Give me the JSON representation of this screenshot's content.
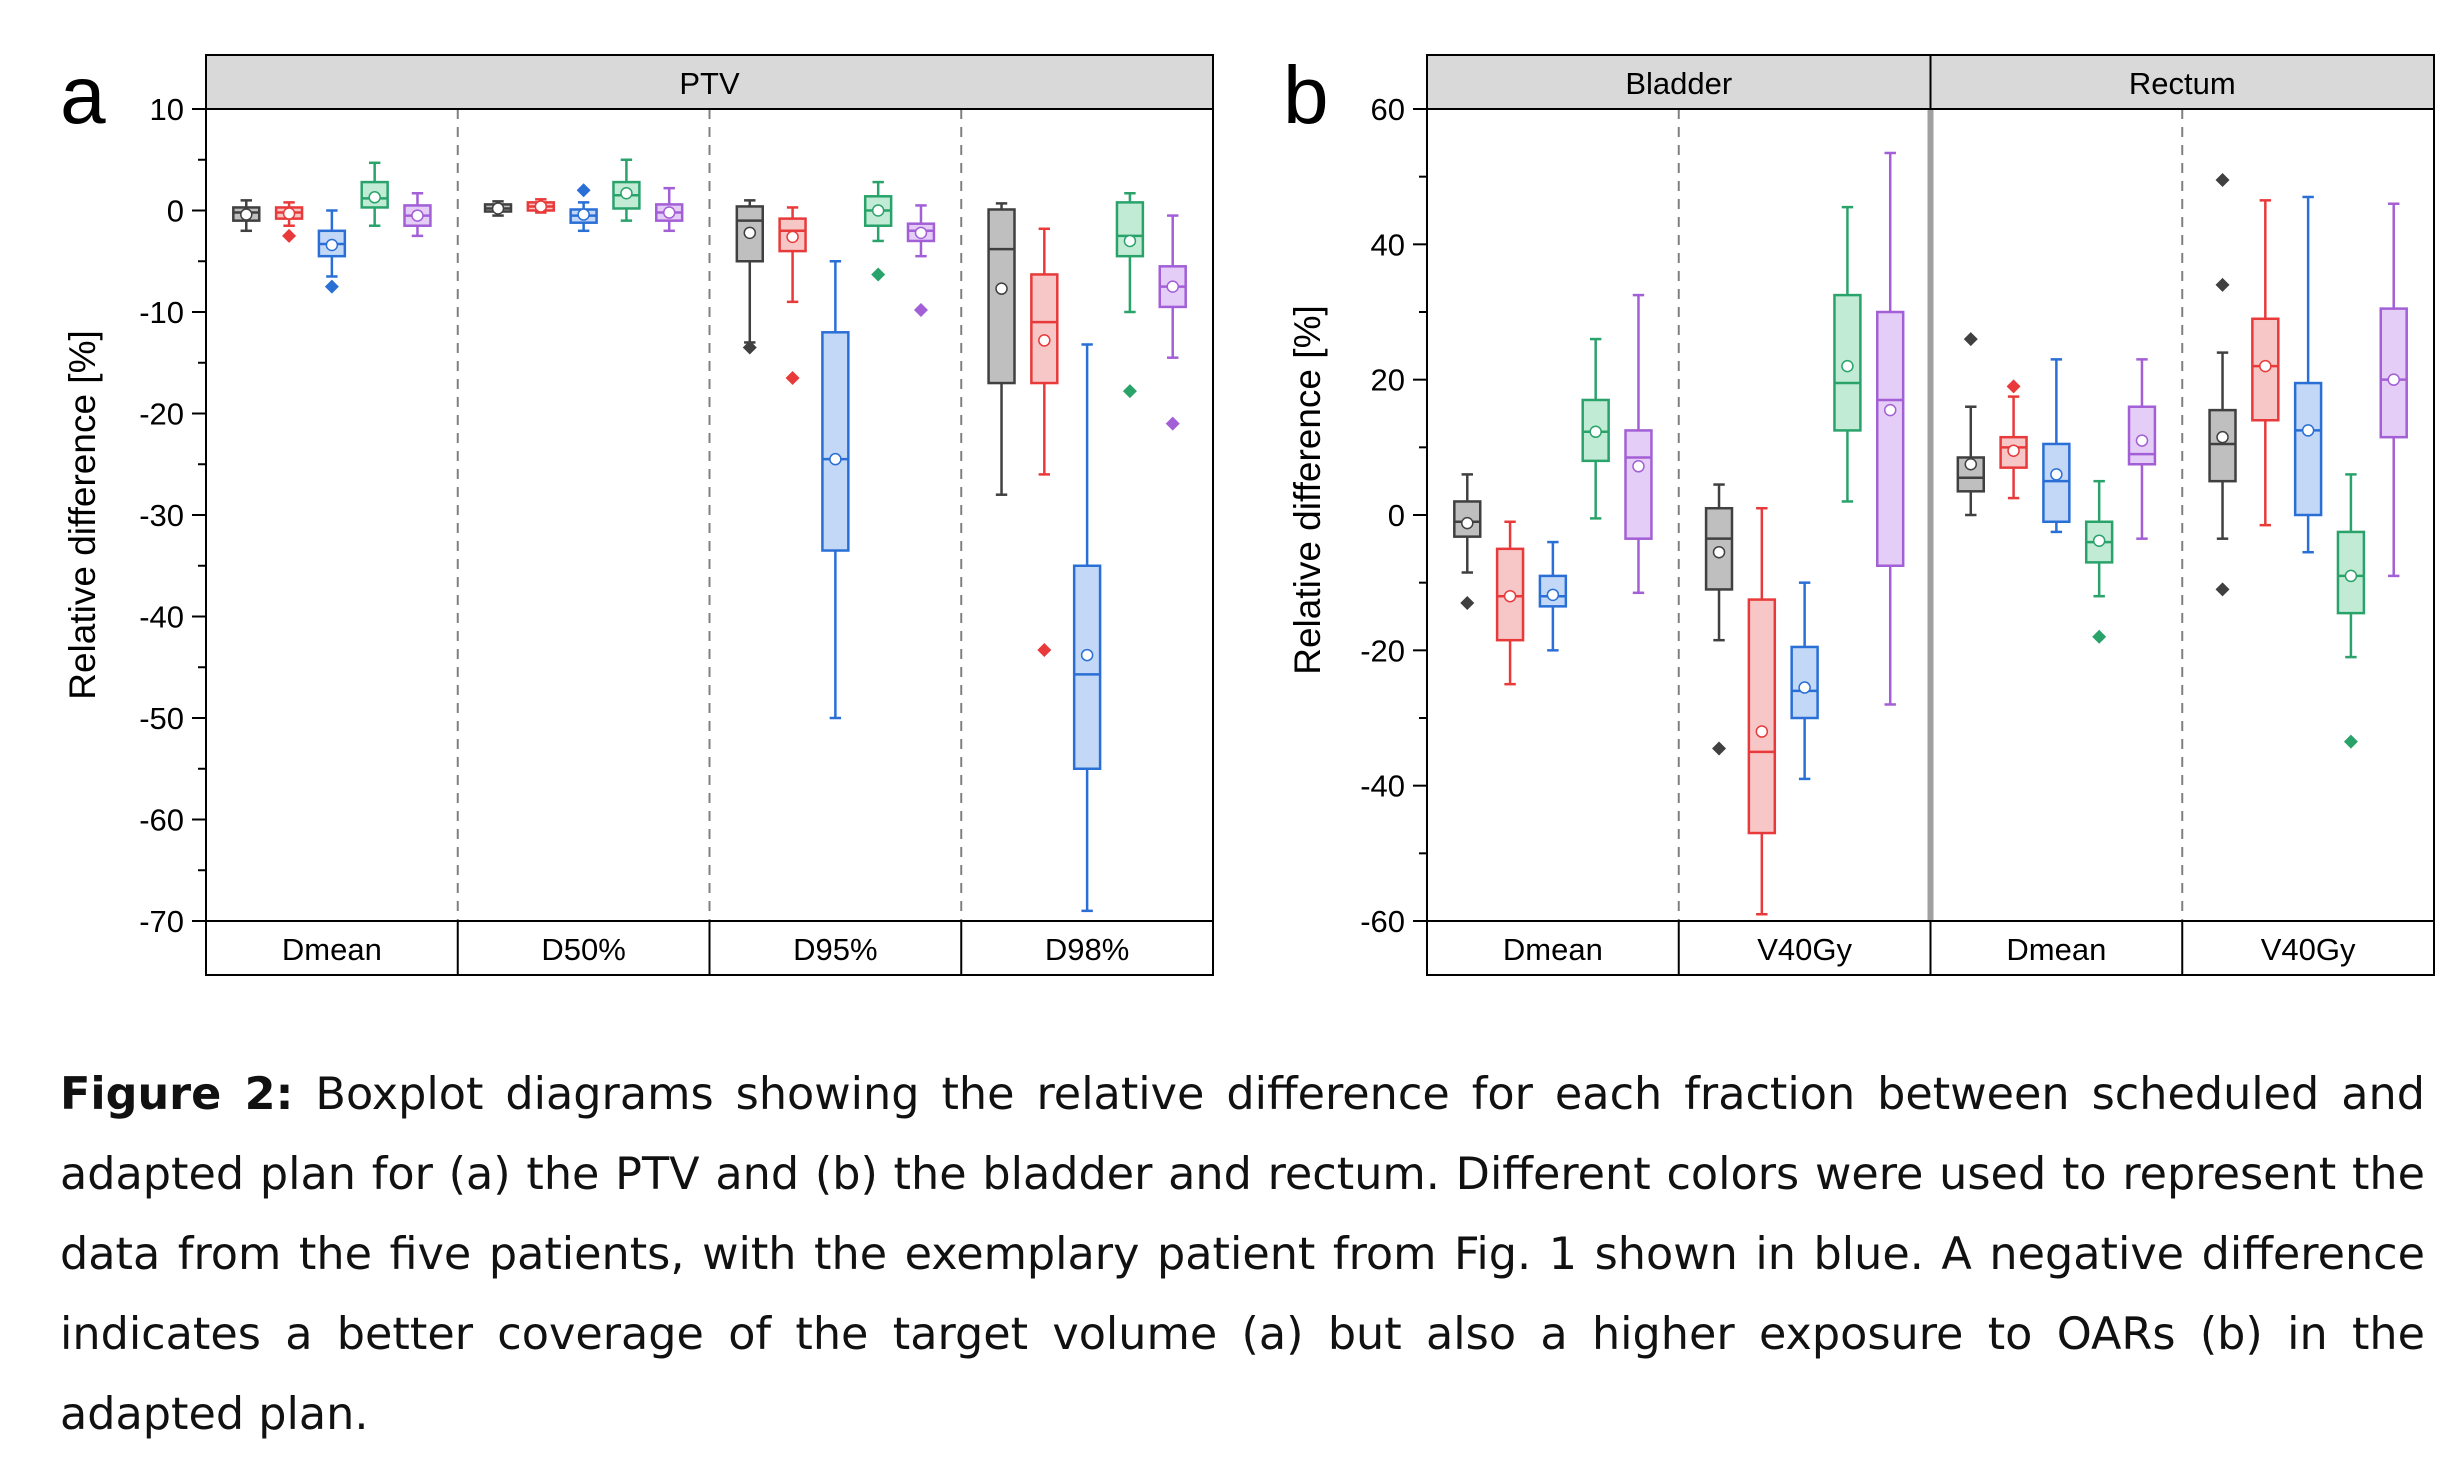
{
  "panel_a_letter": "a",
  "panel_b_letter": "b",
  "caption": {
    "label": "Figure 2:",
    "text": "Boxplot diagrams showing the relative difference for each fraction between scheduled and adapted plan for (a) the PTV and (b) the bladder and rectum. Different colors were used to represent the data from the five patients, with the exemplary patient from Fig. 1 shown in blue. A negative difference indicates a better coverage of the target volume (a) but also a higher exposure to OARs (b) in the adapted plan."
  },
  "colors": {
    "patients": [
      "#404040",
      "#e83a3a",
      "#2a6fd6",
      "#2aa36b",
      "#a35fd6"
    ],
    "fills": [
      "#bfbfbf",
      "#f7c6c6",
      "#c3d8f6",
      "#c2ebd6",
      "#e4cdf6"
    ],
    "header_bg": "#d9d9d9",
    "divider": "#808080"
  },
  "chart_data": [
    {
      "type": "boxplot",
      "panel": "a",
      "ylabel": "Relative difference [%]",
      "ylim": [
        -70,
        10
      ],
      "yticks": [
        10,
        0,
        -10,
        -20,
        -30,
        -40,
        -50,
        -60,
        -70
      ],
      "groups": [
        {
          "header": "PTV",
          "categories": [
            {
              "label": "Dmean",
              "boxes": [
                {
                  "whislo": -2,
                  "q1": -1,
                  "med": -0.2,
                  "q3": 0.3,
                  "whishi": 1,
                  "mean": -0.4,
                  "outliers": []
                },
                {
                  "whislo": -1.5,
                  "q1": -0.8,
                  "med": -0.2,
                  "q3": 0.3,
                  "whishi": 0.8,
                  "mean": -0.3,
                  "outliers": [
                    -2.5
                  ]
                },
                {
                  "whislo": -6.5,
                  "q1": -4.5,
                  "med": -3.3,
                  "q3": -2,
                  "whishi": 0,
                  "mean": -3.4,
                  "outliers": [
                    -7.5
                  ]
                },
                {
                  "whislo": -1.5,
                  "q1": 0.3,
                  "med": 1.2,
                  "q3": 2.8,
                  "whishi": 4.7,
                  "mean": 1.3,
                  "outliers": []
                },
                {
                  "whislo": -2.5,
                  "q1": -1.5,
                  "med": -0.5,
                  "q3": 0.5,
                  "whishi": 1.7,
                  "mean": -0.5,
                  "outliers": []
                }
              ]
            },
            {
              "label": "D50%",
              "boxes": [
                {
                  "whislo": -0.5,
                  "q1": -0.1,
                  "med": 0.2,
                  "q3": 0.6,
                  "whishi": 0.9,
                  "mean": 0.2,
                  "outliers": []
                },
                {
                  "whislo": -0.2,
                  "q1": 0,
                  "med": 0.4,
                  "q3": 0.8,
                  "whishi": 1.1,
                  "mean": 0.4,
                  "outliers": []
                },
                {
                  "whislo": -2,
                  "q1": -1.2,
                  "med": -0.5,
                  "q3": 0.1,
                  "whishi": 0.8,
                  "mean": -0.4,
                  "outliers": [
                    2
                  ]
                },
                {
                  "whislo": -1,
                  "q1": 0.2,
                  "med": 1.5,
                  "q3": 2.8,
                  "whishi": 5,
                  "mean": 1.7,
                  "outliers": []
                },
                {
                  "whislo": -2,
                  "q1": -1,
                  "med": -0.2,
                  "q3": 0.6,
                  "whishi": 2.2,
                  "mean": -0.2,
                  "outliers": []
                }
              ]
            },
            {
              "label": "D95%",
              "boxes": [
                {
                  "whislo": -13,
                  "q1": -5,
                  "med": -1,
                  "q3": 0.4,
                  "whishi": 1,
                  "mean": -2.2,
                  "outliers": [
                    -13.5
                  ]
                },
                {
                  "whislo": -9,
                  "q1": -4,
                  "med": -2,
                  "q3": -0.8,
                  "whishi": 0.3,
                  "mean": -2.6,
                  "outliers": [
                    -16.5
                  ]
                },
                {
                  "whislo": -50,
                  "q1": -33.5,
                  "med": -24.5,
                  "q3": -12,
                  "whishi": -5,
                  "mean": -24.5,
                  "outliers": []
                },
                {
                  "whislo": -3,
                  "q1": -1.5,
                  "med": 0,
                  "q3": 1.4,
                  "whishi": 2.8,
                  "mean": 0,
                  "outliers": [
                    -6.3
                  ]
                },
                {
                  "whislo": -4.5,
                  "q1": -3,
                  "med": -2,
                  "q3": -1.3,
                  "whishi": 0.5,
                  "mean": -2.2,
                  "outliers": [
                    -9.8
                  ]
                }
              ]
            },
            {
              "label": "D98%",
              "boxes": [
                {
                  "whislo": -28,
                  "q1": -17,
                  "med": -3.8,
                  "q3": 0.1,
                  "whishi": 0.7,
                  "mean": -7.7,
                  "outliers": []
                },
                {
                  "whislo": -26,
                  "q1": -17,
                  "med": -11,
                  "q3": -6.3,
                  "whishi": -1.8,
                  "mean": -12.8,
                  "outliers": [
                    -43.3
                  ]
                },
                {
                  "whislo": -69,
                  "q1": -55,
                  "med": -45.7,
                  "q3": -35,
                  "whishi": -13.2,
                  "mean": -43.8,
                  "outliers": []
                },
                {
                  "whislo": -10,
                  "q1": -4.5,
                  "med": -2.5,
                  "q3": 0.8,
                  "whishi": 1.7,
                  "mean": -3,
                  "outliers": [
                    -17.8
                  ]
                },
                {
                  "whislo": -14.5,
                  "q1": -9.5,
                  "med": -7.5,
                  "q3": -5.5,
                  "whishi": -0.5,
                  "mean": -7.5,
                  "outliers": [
                    -21
                  ]
                }
              ]
            }
          ]
        }
      ]
    },
    {
      "type": "boxplot",
      "panel": "b",
      "ylabel": "Relative difference [%]",
      "ylim": [
        -60,
        60
      ],
      "yticks": [
        60,
        40,
        20,
        0,
        -20,
        -40,
        -60
      ],
      "groups": [
        {
          "header": "Bladder",
          "categories": [
            {
              "label": "Dmean",
              "boxes": [
                {
                  "whislo": -8.5,
                  "q1": -3.2,
                  "med": -1,
                  "q3": 2,
                  "whishi": 6,
                  "mean": -1.2,
                  "outliers": [
                    -13
                  ]
                },
                {
                  "whislo": -25,
                  "q1": -18.5,
                  "med": -12,
                  "q3": -5,
                  "whishi": -1,
                  "mean": -12,
                  "outliers": []
                },
                {
                  "whislo": -20,
                  "q1": -13.5,
                  "med": -12,
                  "q3": -9,
                  "whishi": -4,
                  "mean": -11.8,
                  "outliers": []
                },
                {
                  "whislo": -0.5,
                  "q1": 8,
                  "med": 12.3,
                  "q3": 17,
                  "whishi": 26,
                  "mean": 12.3,
                  "outliers": []
                },
                {
                  "whislo": -11.5,
                  "q1": -3.5,
                  "med": 8.5,
                  "q3": 12.5,
                  "whishi": 32.5,
                  "mean": 7.2,
                  "outliers": []
                }
              ]
            },
            {
              "label": "V40Gy",
              "boxes": [
                {
                  "whislo": -18.5,
                  "q1": -11,
                  "med": -3.5,
                  "q3": 1,
                  "whishi": 4.5,
                  "mean": -5.5,
                  "outliers": [
                    -34.5
                  ]
                },
                {
                  "whislo": -59,
                  "q1": -47,
                  "med": -35,
                  "q3": -12.5,
                  "whishi": 1,
                  "mean": -32,
                  "outliers": []
                },
                {
                  "whislo": -39,
                  "q1": -30,
                  "med": -26,
                  "q3": -19.5,
                  "whishi": -10,
                  "mean": -25.5,
                  "outliers": []
                },
                {
                  "whislo": 2,
                  "q1": 12.5,
                  "med": 19.5,
                  "q3": 32.5,
                  "whishi": 45.5,
                  "mean": 22,
                  "outliers": []
                },
                {
                  "whislo": -28,
                  "q1": -7.5,
                  "med": 17,
                  "q3": 30,
                  "whishi": 53.5,
                  "mean": 15.5,
                  "outliers": []
                }
              ]
            }
          ]
        },
        {
          "header": "Rectum",
          "categories": [
            {
              "label": "Dmean",
              "boxes": [
                {
                  "whislo": 0,
                  "q1": 3.5,
                  "med": 5.5,
                  "q3": 8.5,
                  "whishi": 16,
                  "mean": 7.5,
                  "outliers": [
                    26
                  ]
                },
                {
                  "whislo": 2.5,
                  "q1": 7,
                  "med": 10,
                  "q3": 11.5,
                  "whishi": 17.5,
                  "mean": 9.5,
                  "outliers": [
                    19
                  ]
                },
                {
                  "whislo": -2.5,
                  "q1": -1,
                  "med": 5,
                  "q3": 10.5,
                  "whishi": 23,
                  "mean": 6,
                  "outliers": []
                },
                {
                  "whislo": -12,
                  "q1": -7,
                  "med": -4,
                  "q3": -1,
                  "whishi": 5,
                  "mean": -3.8,
                  "outliers": [
                    -18
                  ]
                },
                {
                  "whislo": -3.5,
                  "q1": 7.5,
                  "med": 9,
                  "q3": 16,
                  "whishi": 23,
                  "mean": 11,
                  "outliers": []
                }
              ]
            },
            {
              "label": "V40Gy",
              "boxes": [
                {
                  "whislo": -3.5,
                  "q1": 5,
                  "med": 10.5,
                  "q3": 15.5,
                  "whishi": 24,
                  "mean": 11.5,
                  "outliers": [
                    49.5,
                    34,
                    -11
                  ]
                },
                {
                  "whislo": -1.5,
                  "q1": 14,
                  "med": 22,
                  "q3": 29,
                  "whishi": 46.5,
                  "mean": 22,
                  "outliers": []
                },
                {
                  "whislo": -5.5,
                  "q1": 0,
                  "med": 12.5,
                  "q3": 19.5,
                  "whishi": 47,
                  "mean": 12.5,
                  "outliers": []
                },
                {
                  "whislo": -21,
                  "q1": -14.5,
                  "med": -9,
                  "q3": -2.5,
                  "whishi": 6,
                  "mean": -9,
                  "outliers": [
                    -33.5
                  ]
                },
                {
                  "whislo": -9,
                  "q1": 11.5,
                  "med": 20,
                  "q3": 30.5,
                  "whishi": 46,
                  "mean": 20,
                  "outliers": []
                }
              ]
            }
          ]
        }
      ]
    }
  ]
}
